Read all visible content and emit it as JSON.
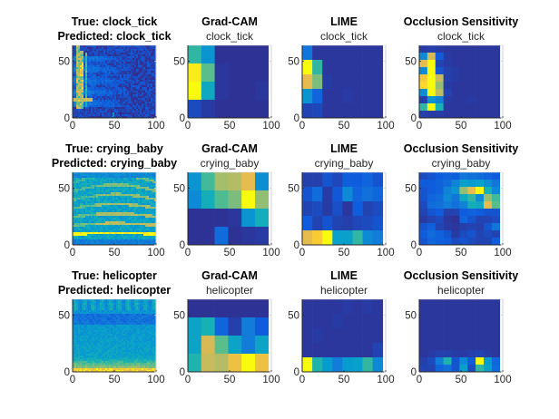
{
  "chart_data": {
    "type": "heatmap",
    "title": "",
    "layout": "3 rows x 4 columns",
    "column_titles": [
      "",
      "Grad-CAM",
      "LIME",
      "Occlusion Sensitivity"
    ],
    "axes": {
      "xlim": [
        0,
        100
      ],
      "ylim": [
        0,
        64
      ],
      "xticks": [
        "0",
        "50",
        "100"
      ],
      "yticks": [
        "0",
        "50"
      ],
      "grid": false
    },
    "colormap": "parula",
    "rows": [
      {
        "true_label": "clock_tick",
        "predicted_label": "clock_tick",
        "spectrogram_title": [
          "True: clock_tick",
          "Predicted: clock_tick"
        ],
        "spectrogram_kind": "clock_tick",
        "panels": [
          {
            "method": "Grad-CAM",
            "subtitle": "clock_tick",
            "cols": 6,
            "rows": 4,
            "values": [
              [
                0.55,
                0.35,
                0.02,
                0.02,
                0.02,
                0.02
              ],
              [
                0.98,
                0.62,
                0.03,
                0.02,
                0.02,
                0.02
              ],
              [
                1.0,
                0.45,
                0.03,
                0.02,
                0.02,
                0.03
              ],
              [
                0.08,
                0.04,
                0.02,
                0.02,
                0.02,
                0.02
              ]
            ]
          },
          {
            "method": "LIME",
            "subtitle": "clock_tick",
            "cols": 8,
            "rows": 5,
            "values": [
              [
                0.22,
                0.03,
                0.03,
                0.03,
                0.03,
                0.03,
                0.03,
                0.03
              ],
              [
                1.0,
                0.55,
                0.03,
                0.03,
                0.03,
                0.03,
                0.03,
                0.03
              ],
              [
                0.88,
                0.68,
                0.04,
                0.03,
                0.03,
                0.03,
                0.03,
                0.03
              ],
              [
                0.35,
                0.15,
                0.03,
                0.03,
                0.04,
                0.03,
                0.03,
                0.03
              ],
              [
                0.06,
                0.07,
                0.03,
                0.03,
                0.03,
                0.03,
                0.03,
                0.03
              ]
            ]
          },
          {
            "method": "Occlusion Sensitivity",
            "subtitle": "clock_tick",
            "cols": 10,
            "rows": 10,
            "values": [
              [
                0.04,
                0.05,
                0.04,
                0.03,
                0.03,
                0.03,
                0.03,
                0.03,
                0.03,
                0.03
              ],
              [
                0.3,
                0.85,
                0.12,
                0.04,
                0.03,
                0.03,
                0.03,
                0.03,
                0.03,
                0.03
              ],
              [
                0.88,
                1.0,
                0.06,
                0.04,
                0.03,
                0.03,
                0.03,
                0.03,
                0.03,
                0.03
              ],
              [
                0.3,
                1.0,
                0.1,
                0.05,
                0.04,
                0.03,
                0.03,
                0.03,
                0.03,
                0.03
              ],
              [
                0.92,
                1.0,
                0.82,
                0.05,
                0.04,
                0.03,
                0.03,
                0.03,
                0.03,
                0.03
              ],
              [
                0.95,
                1.0,
                0.72,
                0.04,
                0.03,
                0.03,
                0.03,
                0.03,
                0.03,
                0.03
              ],
              [
                0.32,
                1.0,
                0.8,
                0.06,
                0.03,
                0.03,
                0.03,
                0.03,
                0.03,
                0.03
              ],
              [
                0.05,
                0.35,
                0.28,
                0.04,
                0.03,
                0.03,
                0.04,
                0.03,
                0.03,
                0.03
              ],
              [
                0.55,
                1.0,
                0.5,
                0.03,
                0.03,
                0.03,
                0.03,
                0.03,
                0.03,
                0.03
              ],
              [
                0.05,
                0.04,
                0.04,
                0.03,
                0.03,
                0.03,
                0.03,
                0.03,
                0.03,
                0.03
              ]
            ]
          }
        ]
      },
      {
        "true_label": "crying_baby",
        "predicted_label": "crying_baby",
        "spectrogram_title": [
          "True: crying_baby",
          "Predicted: crying_baby"
        ],
        "spectrogram_kind": "crying_baby",
        "panels": [
          {
            "method": "Grad-CAM",
            "subtitle": "crying_baby",
            "cols": 6,
            "rows": 4,
            "values": [
              [
                0.35,
                0.58,
                0.75,
                0.78,
                0.88,
                0.32
              ],
              [
                0.3,
                0.48,
                0.6,
                0.68,
                1.0,
                0.72
              ],
              [
                0.02,
                0.02,
                0.02,
                0.03,
                0.35,
                0.48
              ],
              [
                0.02,
                0.02,
                0.18,
                0.02,
                0.03,
                0.04
              ]
            ]
          },
          {
            "method": "LIME",
            "subtitle": "crying_baby",
            "cols": 8,
            "rows": 5,
            "values": [
              [
                0.05,
                0.05,
                0.1,
                0.07,
                0.13,
                0.12,
                0.15,
                0.1
              ],
              [
                0.1,
                0.18,
                0.04,
                0.11,
                0.3,
                0.15,
                0.2,
                0.16
              ],
              [
                0.06,
                0.08,
                0.04,
                0.09,
                0.03,
                0.12,
                0.06,
                0.08
              ],
              [
                0.12,
                0.06,
                0.1,
                0.06,
                0.05,
                0.07,
                0.08,
                0.1
              ],
              [
                0.88,
                0.93,
                1.0,
                0.4,
                0.4,
                0.55,
                0.3,
                0.25
              ]
            ]
          },
          {
            "method": "Occlusion Sensitivity",
            "subtitle": "crying_baby",
            "cols": 10,
            "rows": 10,
            "values": [
              [
                0.08,
                0.1,
                0.12,
                0.14,
                0.12,
                0.22,
                0.2,
                0.18,
                0.15,
                0.12
              ],
              [
                0.12,
                0.12,
                0.14,
                0.18,
                0.28,
                0.4,
                0.38,
                0.4,
                0.32,
                0.22
              ],
              [
                0.1,
                0.12,
                0.14,
                0.28,
                0.35,
                0.72,
                0.88,
                1.0,
                0.5,
                0.3
              ],
              [
                0.1,
                0.15,
                0.18,
                0.3,
                0.22,
                0.45,
                0.55,
                0.3,
                0.72,
                0.58
              ],
              [
                0.08,
                0.18,
                0.2,
                0.25,
                0.2,
                0.28,
                0.48,
                0.45,
                0.88,
                0.62
              ],
              [
                0.06,
                0.1,
                0.12,
                0.05,
                0.06,
                0.12,
                0.14,
                0.12,
                0.1,
                0.1
              ],
              [
                0.04,
                0.06,
                0.08,
                0.03,
                0.02,
                0.15,
                0.1,
                0.06,
                0.06,
                0.08
              ],
              [
                0.1,
                0.14,
                0.06,
                0.04,
                0.03,
                0.05,
                0.06,
                0.05,
                0.1,
                0.22
              ],
              [
                0.12,
                0.18,
                0.14,
                0.1,
                0.04,
                0.08,
                0.1,
                0.06,
                0.08,
                0.06
              ],
              [
                0.1,
                0.16,
                0.14,
                0.12,
                0.08,
                0.1,
                0.08,
                0.06,
                0.06,
                0.12
              ]
            ]
          }
        ]
      },
      {
        "true_label": "helicopter",
        "predicted_label": "helicopter",
        "spectrogram_title": [
          "True: helicopter",
          "Predicted: helicopter"
        ],
        "spectrogram_kind": "helicopter",
        "panels": [
          {
            "method": "Grad-CAM",
            "subtitle": "helicopter",
            "cols": 6,
            "rows": 4,
            "values": [
              [
                0.02,
                0.02,
                0.02,
                0.02,
                0.02,
                0.02
              ],
              [
                0.42,
                0.5,
                0.15,
                0.05,
                0.25,
                0.12
              ],
              [
                0.42,
                0.85,
                0.62,
                0.42,
                0.25,
                0.42
              ],
              [
                0.52,
                0.82,
                0.78,
                0.9,
                1.0,
                0.9
              ]
            ]
          },
          {
            "method": "LIME",
            "subtitle": "helicopter",
            "cols": 8,
            "rows": 5,
            "values": [
              [
                0.03,
                0.03,
                0.03,
                0.03,
                0.04,
                0.03,
                0.04,
                0.03
              ],
              [
                0.03,
                0.03,
                0.03,
                0.04,
                0.03,
                0.03,
                0.03,
                0.03
              ],
              [
                0.03,
                0.04,
                0.03,
                0.03,
                0.03,
                0.03,
                0.03,
                0.03
              ],
              [
                0.03,
                0.03,
                0.03,
                0.03,
                0.03,
                0.03,
                0.03,
                0.06
              ],
              [
                1.0,
                0.52,
                0.38,
                0.25,
                0.38,
                0.4,
                0.55,
                0.3
              ]
            ]
          },
          {
            "method": "Occlusion Sensitivity",
            "subtitle": "helicopter",
            "cols": 10,
            "rows": 10,
            "values": [
              [
                0.03,
                0.03,
                0.03,
                0.03,
                0.03,
                0.03,
                0.03,
                0.03,
                0.03,
                0.03
              ],
              [
                0.03,
                0.03,
                0.03,
                0.03,
                0.03,
                0.03,
                0.03,
                0.03,
                0.03,
                0.03
              ],
              [
                0.03,
                0.03,
                0.03,
                0.03,
                0.03,
                0.03,
                0.03,
                0.03,
                0.03,
                0.03
              ],
              [
                0.03,
                0.03,
                0.03,
                0.03,
                0.03,
                0.03,
                0.03,
                0.03,
                0.03,
                0.03
              ],
              [
                0.03,
                0.03,
                0.03,
                0.03,
                0.03,
                0.03,
                0.03,
                0.03,
                0.03,
                0.03
              ],
              [
                0.03,
                0.03,
                0.03,
                0.03,
                0.03,
                0.03,
                0.03,
                0.03,
                0.03,
                0.03
              ],
              [
                0.03,
                0.03,
                0.03,
                0.03,
                0.03,
                0.03,
                0.03,
                0.03,
                0.03,
                0.03
              ],
              [
                0.03,
                0.04,
                0.05,
                0.05,
                0.04,
                0.04,
                0.05,
                0.06,
                0.04,
                0.03
              ],
              [
                0.05,
                0.08,
                0.25,
                0.52,
                0.1,
                0.3,
                0.12,
                1.0,
                0.38,
                0.15
              ],
              [
                0.06,
                0.06,
                0.15,
                0.2,
                0.1,
                0.4,
                0.08,
                0.55,
                0.4,
                0.18
              ]
            ]
          }
        ]
      }
    ]
  }
}
